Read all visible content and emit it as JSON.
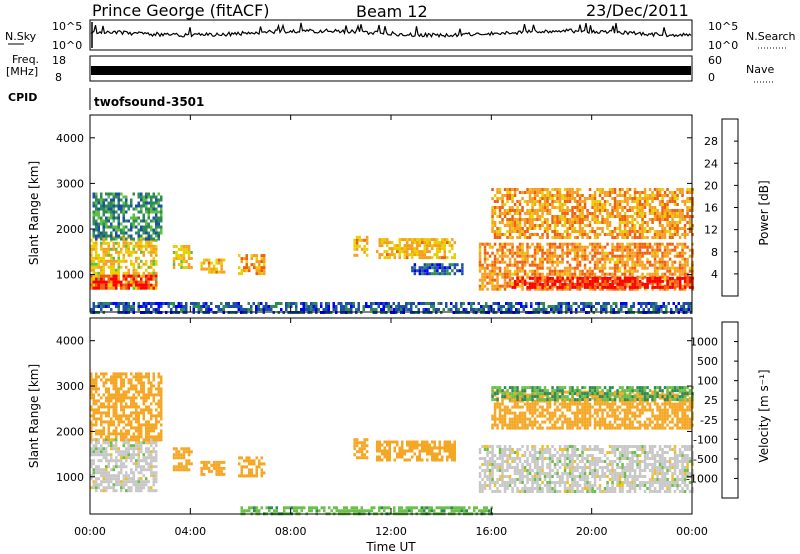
{
  "header": {
    "title": "Prince George (fitACF)",
    "beam": "Beam 12",
    "date": "23/Dec/2011"
  },
  "nsky_panel": {
    "left_label": "N.Sky",
    "right_label": "N.Search",
    "left_ticks": [
      "10^5",
      "10^0"
    ],
    "right_ticks": [
      "10^5",
      "10^0"
    ]
  },
  "freq_panel": {
    "left_label_1": "Freq.",
    "left_label_2": "[MHz]",
    "left_ticks": [
      "18",
      "8"
    ],
    "right_label": "Nave",
    "right_ticks": [
      "60",
      "0"
    ]
  },
  "cpid": {
    "label": "CPID",
    "program": "twofsound",
    "id": "-3501"
  },
  "colors": {
    "power_scale": [
      "#0000ff",
      "#1e4fa8",
      "#2e8b57",
      "#5fbf3f",
      "#e8d000",
      "#f5a020",
      "#f06010",
      "#ff0000"
    ],
    "velocity_scale": [
      "#ff0000",
      "#f26a00",
      "#f5a623",
      "#f0c020",
      "#c8c8c8",
      "#c8c8c8",
      "#6cc04a",
      "#2e8b57",
      "#2a5ca8",
      "#1e3fa0"
    ]
  },
  "chart_data": [
    {
      "type": "heatmap",
      "parameter": "Power",
      "unit_label": "Power [dB]",
      "ylabel": "Slant Range [km]",
      "xlim_hours": [
        0,
        24
      ],
      "ylim_km": [
        180,
        4500
      ],
      "y_ticks": [
        "1000",
        "2000",
        "3000",
        "4000"
      ],
      "colorbar_ticks": [
        "4",
        "8",
        "12",
        "16",
        "20",
        "24",
        "28"
      ],
      "clim": [
        0,
        30
      ],
      "echo_regions": [
        {
          "t_start": 0.0,
          "t_end": 2.6,
          "r_start": 700,
          "r_end": 1850,
          "value": 18
        },
        {
          "t_start": 0.0,
          "t_end": 2.6,
          "r_start": 700,
          "r_end": 1000,
          "value": 27
        },
        {
          "t_start": 0.1,
          "t_end": 2.8,
          "r_start": 1800,
          "r_end": 2800,
          "value": 9
        },
        {
          "t_start": 3.3,
          "t_end": 4.0,
          "r_start": 1150,
          "r_end": 1650,
          "value": 17
        },
        {
          "t_start": 4.4,
          "t_end": 5.3,
          "r_start": 1050,
          "r_end": 1350,
          "value": 19
        },
        {
          "t_start": 5.9,
          "t_end": 6.9,
          "r_start": 1050,
          "r_end": 1450,
          "value": 21
        },
        {
          "t_start": 10.5,
          "t_end": 11.0,
          "r_start": 1400,
          "r_end": 1850,
          "value": 19
        },
        {
          "t_start": 11.4,
          "t_end": 14.5,
          "r_start": 1400,
          "r_end": 1800,
          "value": 19
        },
        {
          "t_start": 12.8,
          "t_end": 14.8,
          "r_start": 1000,
          "r_end": 1250,
          "value": 6
        },
        {
          "t_start": 15.5,
          "t_end": 24.0,
          "r_start": 700,
          "r_end": 1700,
          "value": 22
        },
        {
          "t_start": 16.8,
          "t_end": 24.0,
          "r_start": 700,
          "r_end": 950,
          "value": 28
        },
        {
          "t_start": 16.0,
          "t_end": 24.0,
          "r_start": 1800,
          "r_end": 2900,
          "value": 21
        },
        {
          "t_start": 0.0,
          "t_end": 24.0,
          "r_start": 180,
          "r_end": 400,
          "value": 6
        }
      ]
    },
    {
      "type": "heatmap",
      "parameter": "Velocity",
      "unit_label": "Velocity [m s⁻¹]",
      "ylabel": "Slant Range [km]",
      "xlabel": "Time UT",
      "xlim_hours": [
        0,
        24
      ],
      "ylim_km": [
        180,
        4500
      ],
      "x_ticks": [
        "00:00",
        "04:00",
        "08:00",
        "12:00",
        "16:00",
        "20:00",
        "00:00"
      ],
      "y_ticks": [
        "1000",
        "2000",
        "3000",
        "4000"
      ],
      "colorbar_ticks": [
        "-1000",
        "-500",
        "-100",
        "-25",
        "25",
        "100",
        "500",
        "1000"
      ],
      "echo_regions": [
        {
          "t_start": 0.0,
          "t_end": 2.6,
          "r_start": 700,
          "r_end": 1850,
          "value": 0
        },
        {
          "t_start": 0.0,
          "t_end": 2.8,
          "r_start": 1800,
          "r_end": 3300,
          "value": -150
        },
        {
          "t_start": 3.3,
          "t_end": 4.0,
          "r_start": 1150,
          "r_end": 1650,
          "value": -200
        },
        {
          "t_start": 4.4,
          "t_end": 5.3,
          "r_start": 1050,
          "r_end": 1350,
          "value": -250
        },
        {
          "t_start": 5.9,
          "t_end": 6.9,
          "r_start": 1050,
          "r_end": 1450,
          "value": -300
        },
        {
          "t_start": 10.5,
          "t_end": 11.0,
          "r_start": 1400,
          "r_end": 1850,
          "value": -250
        },
        {
          "t_start": 11.4,
          "t_end": 14.5,
          "r_start": 1400,
          "r_end": 1800,
          "value": -200
        },
        {
          "t_start": 15.5,
          "t_end": 24.0,
          "r_start": 700,
          "r_end": 1700,
          "value": 0
        },
        {
          "t_start": 16.0,
          "t_end": 24.0,
          "r_start": 2100,
          "r_end": 2900,
          "value": -200
        },
        {
          "t_start": 16.0,
          "t_end": 24.0,
          "r_start": 2700,
          "r_end": 3000,
          "value": 100
        },
        {
          "t_start": 6.0,
          "t_end": 16.0,
          "r_start": 180,
          "r_end": 350,
          "value": 80
        }
      ]
    }
  ]
}
